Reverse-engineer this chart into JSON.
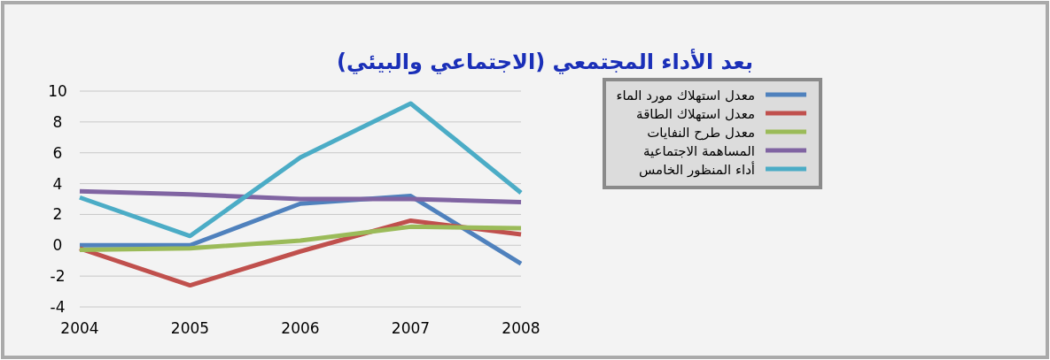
{
  "chart_data": {
    "type": "line",
    "title": "بعد الأداء المجتمعي (الاجتماعي والبيئي)",
    "categories": [
      "2004",
      "2005",
      "2006",
      "2007",
      "2008"
    ],
    "series": [
      {
        "name": "معدل استهلاك مورد الماء",
        "color": "#4f81bd",
        "values": [
          0,
          0,
          2.7,
          3.2,
          -1.2
        ]
      },
      {
        "name": "معدل استهلاك الطاقة",
        "color": "#c0504d",
        "values": [
          -0.2,
          -2.6,
          -0.4,
          1.6,
          0.7
        ]
      },
      {
        "name": "معدل طرح النفايات",
        "color": "#9bbb59",
        "values": [
          -0.3,
          -0.2,
          0.3,
          1.2,
          1.1
        ]
      },
      {
        "name": "المساهمة الاجتماعية",
        "color": "#8064a2",
        "values": [
          3.5,
          3.3,
          3.0,
          3.0,
          2.8
        ]
      },
      {
        "name": "أداء المنظور الخامس",
        "color": "#4bacc6",
        "values": [
          3.1,
          0.6,
          5.7,
          9.2,
          3.4
        ]
      }
    ],
    "ylim": [
      -4,
      10
    ],
    "yticks": [
      -4,
      -2,
      0,
      2,
      4,
      6,
      8,
      10
    ],
    "grid": "y",
    "legend": "right",
    "marker": "none",
    "line_style": "solid"
  }
}
